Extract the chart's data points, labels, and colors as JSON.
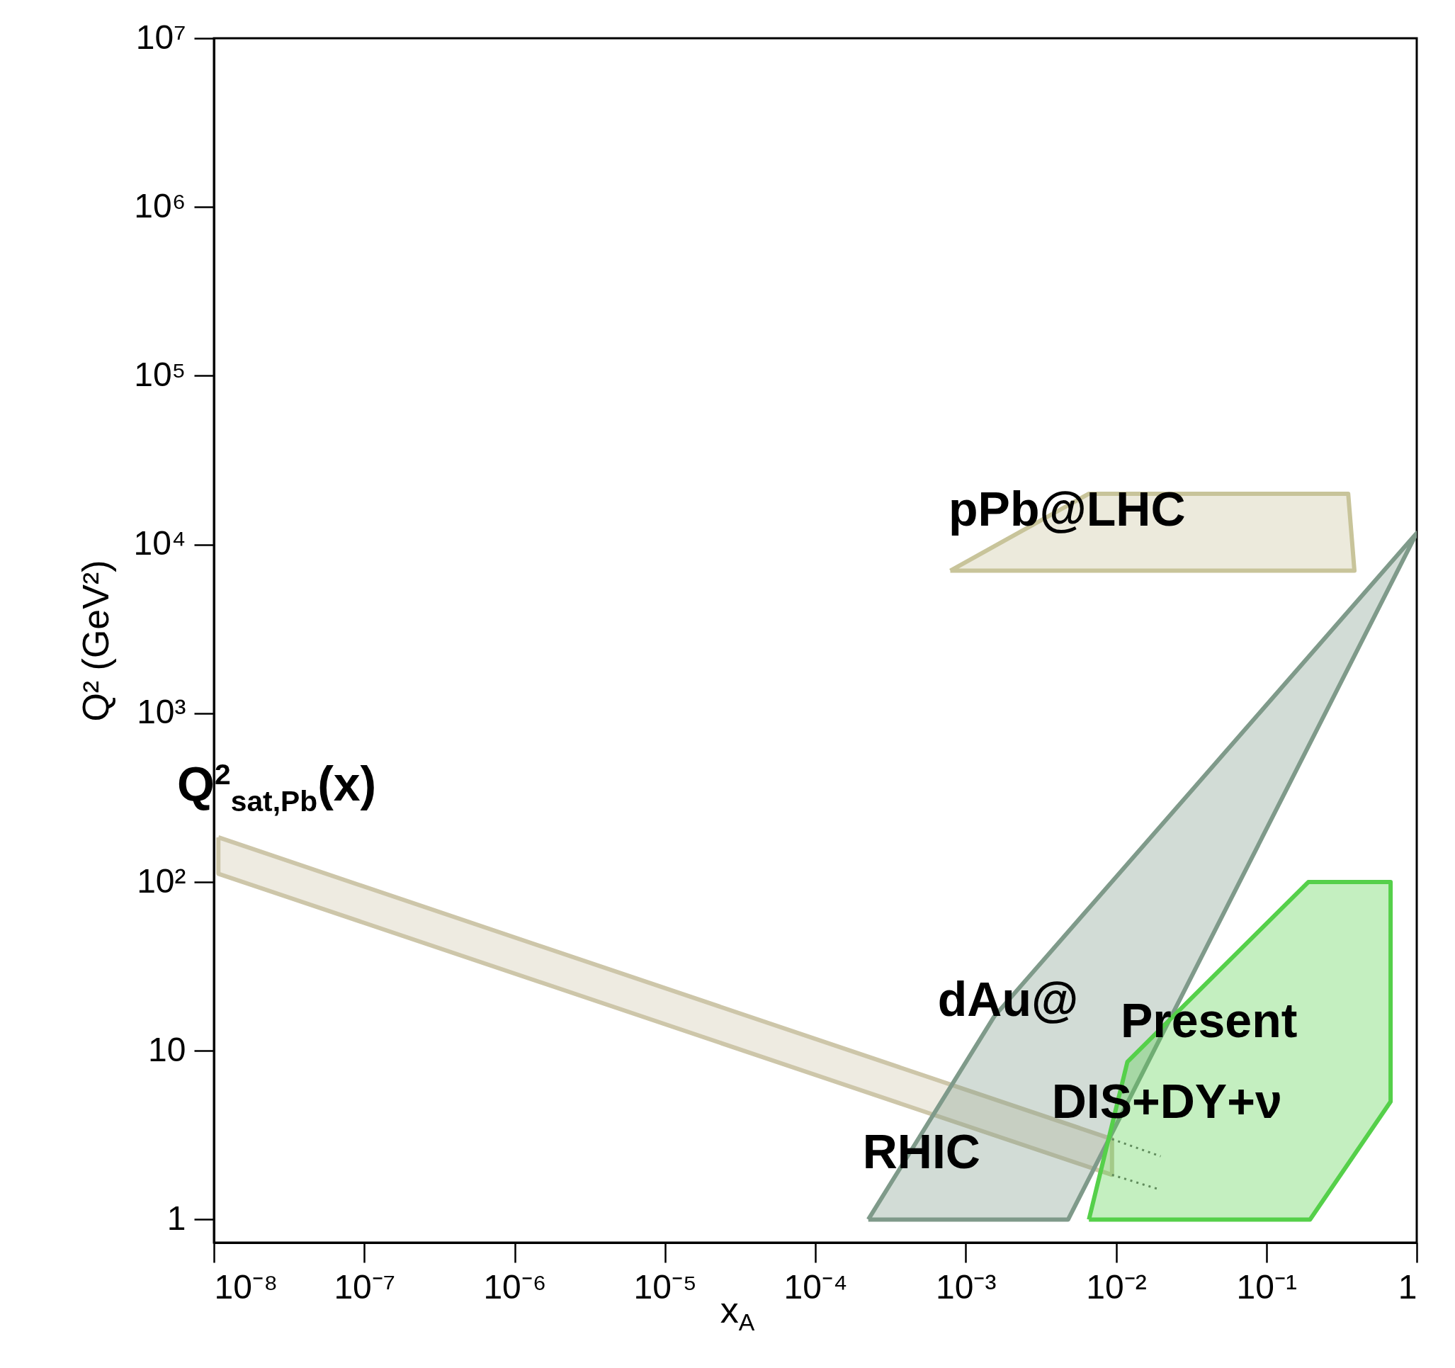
{
  "chart_data": {
    "type": "area",
    "xlabel": "x$_{A}$",
    "ylabel": "Q² (GeV²)",
    "log": "xy",
    "grid": false,
    "xlim": [
      1e-08,
      1
    ],
    "ylim": [
      0.73,
      10000000.0
    ],
    "xticks": [
      {
        "value": 1e-08,
        "label": "10⁻⁸"
      },
      {
        "value": 1e-07,
        "label": "10⁻⁷"
      },
      {
        "value": 1e-06,
        "label": "10⁻⁶"
      },
      {
        "value": 1e-05,
        "label": "10⁻⁵"
      },
      {
        "value": 0.0001,
        "label": "10⁻⁴"
      },
      {
        "value": 0.001,
        "label": "10⁻³"
      },
      {
        "value": 0.01,
        "label": "10⁻²"
      },
      {
        "value": 0.1,
        "label": "10⁻¹"
      },
      1
    ],
    "yticks": [
      1,
      10,
      {
        "value": 100,
        "label": "10²"
      },
      {
        "value": 1000,
        "label": "10³"
      },
      {
        "value": 10000,
        "label": "10⁴"
      },
      {
        "value": 100000,
        "label": "10⁵"
      },
      {
        "value": 1000000,
        "label": "10⁶"
      },
      {
        "value": 10000000,
        "label": "10⁷"
      }
    ],
    "series": [
      {
        "color": "#cdc6a9",
        "x": [
          1.07e-08,
          0.0094,
          0.0094,
          1.07e-08,
          1.07e-08
        ],
        "values": [
          184,
          3.0,
          1.84,
          112,
          184
        ]
      },
      {
        "type": "line",
        "color": "#666666",
        "line_style": "dotted",
        "x": [
          0.0094,
          0.0198
        ],
        "values": [
          3.0,
          2.37
        ]
      },
      {
        "type": "line",
        "color": "#666666",
        "line_style": "dotted",
        "x": [
          0.0094,
          0.0198
        ],
        "values": [
          1.84,
          1.5
        ]
      },
      {
        "color": "#c8c49a",
        "x": [
          0.00079,
          0.0066,
          0.35,
          0.385,
          0.00079
        ],
        "values": [
          7000,
          20000,
          20000,
          7000,
          7000
        ]
      },
      {
        "color": "#7f9a8a",
        "x": [
          0.000225,
          0.00155,
          1,
          0.0048,
          0.000225
        ],
        "values": [
          1,
          16,
          11700,
          1,
          1
        ]
      },
      {
        "color": "#55d04a",
        "x": [
          0.0066,
          0.195,
          0.67,
          0.67,
          0.19,
          0.0119,
          0.0066
        ],
        "values": [
          1,
          1,
          5.0,
          100,
          100,
          8.6,
          1
        ]
      }
    ],
    "annotations": [
      "Q$^{2}$$_{sat,Pb}$(x)",
      "pPb@LHC",
      "dAu@",
      "RHIC",
      "Present",
      "DIS+DY+ν"
    ]
  }
}
